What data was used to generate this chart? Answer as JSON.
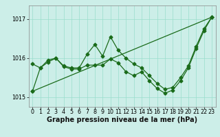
{
  "xlabel": "Graphe pression niveau de la mer (hPa)",
  "background_color": "#cceee8",
  "grid_color": "#99ddcc",
  "line_color": "#1a6b1a",
  "ylim": [
    1014.75,
    1017.35
  ],
  "xlim": [
    -0.5,
    23.5
  ],
  "yticks": [
    1015,
    1016,
    1017
  ],
  "xticks": [
    0,
    1,
    2,
    3,
    4,
    5,
    6,
    7,
    8,
    9,
    10,
    11,
    12,
    13,
    14,
    15,
    16,
    17,
    18,
    19,
    20,
    21,
    22,
    23
  ],
  "line1_x": [
    0,
    1,
    2,
    3,
    4,
    5,
    6,
    7,
    8,
    9,
    10,
    11,
    12,
    13,
    14,
    15,
    16,
    17,
    18,
    19,
    20,
    21,
    22,
    23
  ],
  "line1_y": [
    1015.85,
    1015.75,
    1015.95,
    1016.0,
    1015.8,
    1015.75,
    1015.75,
    1016.1,
    1016.35,
    1016.05,
    1016.55,
    1016.2,
    1016.0,
    1015.85,
    1015.75,
    1015.55,
    1015.35,
    1015.2,
    1015.25,
    1015.5,
    1015.8,
    1016.3,
    1016.75,
    1017.05
  ],
  "line2_x": [
    0,
    1,
    2,
    3,
    4,
    5,
    6,
    7,
    8,
    9,
    10,
    11,
    12,
    13,
    14,
    15,
    16,
    17,
    18,
    19,
    20,
    21,
    22,
    23
  ],
  "line2_y": [
    1015.15,
    1015.75,
    1015.9,
    1016.0,
    1015.78,
    1015.72,
    1015.72,
    1015.82,
    1015.82,
    1015.82,
    1015.98,
    1015.88,
    1015.65,
    1015.55,
    1015.65,
    1015.42,
    1015.22,
    1015.1,
    1015.18,
    1015.42,
    1015.75,
    1016.25,
    1016.7,
    1017.05
  ],
  "line3_x": [
    0,
    23
  ],
  "line3_y": [
    1015.15,
    1017.05
  ],
  "marker_size": 2.5,
  "linewidth": 0.9,
  "tick_fontsize": 5.8,
  "xlabel_fontsize": 7.0
}
